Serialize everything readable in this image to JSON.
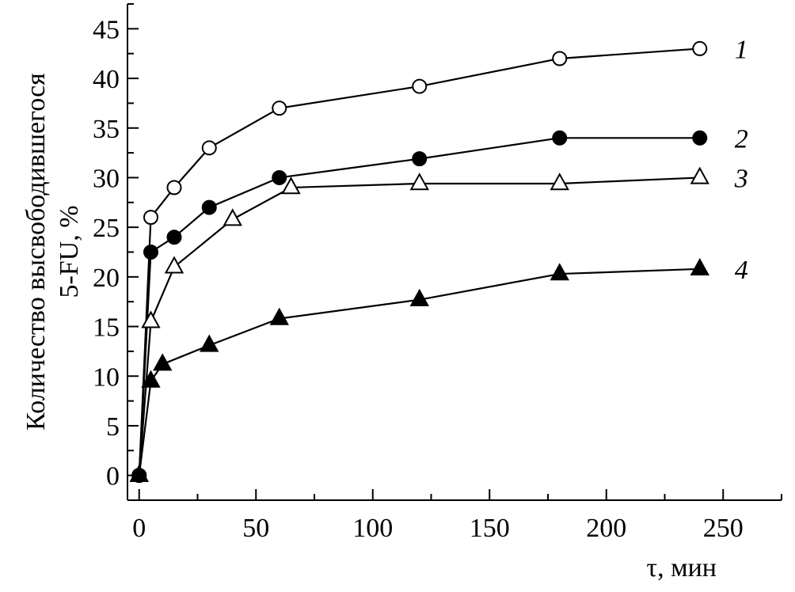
{
  "chart_data": {
    "type": "line",
    "title": "",
    "xlabel": "τ, мин",
    "ylabel_line1": "Количество высвободившегося",
    "ylabel_line2": "5-FU, %",
    "xlim": [
      -5,
      275
    ],
    "ylim": [
      -2.5,
      47.5
    ],
    "xticks": [
      0,
      50,
      100,
      150,
      200,
      250
    ],
    "yticks": [
      0,
      5,
      10,
      15,
      20,
      25,
      30,
      35,
      40,
      45
    ],
    "x_minor_step": 25,
    "y_minor_step": 2.5,
    "grid": false,
    "series": [
      {
        "name": "1",
        "marker": "circle",
        "filled": false,
        "x": [
          0,
          5,
          15,
          30,
          60,
          120,
          180,
          240
        ],
        "y": [
          0,
          26,
          29,
          33,
          37,
          39.2,
          42,
          43
        ]
      },
      {
        "name": "2",
        "marker": "circle",
        "filled": true,
        "x": [
          0,
          5,
          15,
          30,
          60,
          120,
          180,
          240
        ],
        "y": [
          0,
          22.5,
          24,
          27,
          30,
          31.9,
          34,
          34
        ]
      },
      {
        "name": "3",
        "marker": "triangle",
        "filled": false,
        "x": [
          0,
          5,
          15,
          40,
          65,
          120,
          180,
          240
        ],
        "y": [
          0,
          15.5,
          21,
          25.8,
          29,
          29.4,
          29.4,
          30
        ]
      },
      {
        "name": "4",
        "marker": "triangle",
        "filled": true,
        "x": [
          0,
          5,
          10,
          30,
          60,
          120,
          180,
          240
        ],
        "y": [
          0,
          9.5,
          11.2,
          13.1,
          15.8,
          17.7,
          20.3,
          20.8
        ]
      }
    ],
    "colors": {
      "line": "#000000",
      "open_fill": "#ffffff",
      "filled": "#000000"
    }
  }
}
